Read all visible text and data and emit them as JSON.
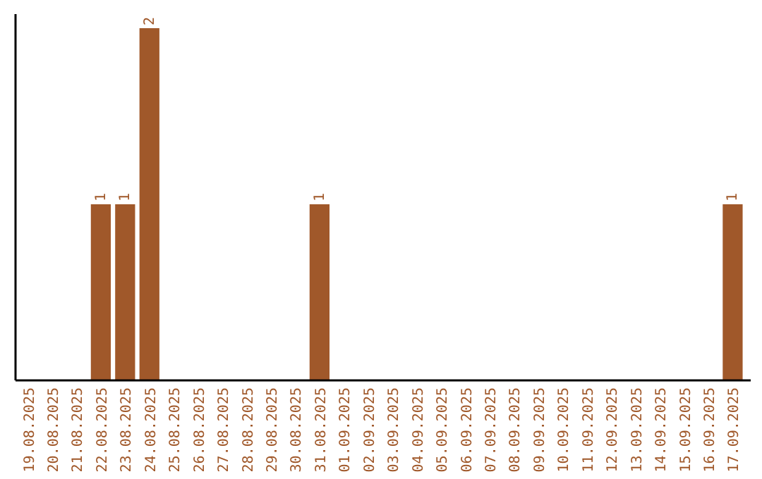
{
  "chart_data": {
    "type": "bar",
    "categories": [
      "19.08.2025",
      "20.08.2025",
      "21.08.2025",
      "22.08.2025",
      "23.08.2025",
      "24.08.2025",
      "25.08.2025",
      "26.08.2025",
      "27.08.2025",
      "28.08.2025",
      "29.08.2025",
      "30.08.2025",
      "31.08.2025",
      "01.09.2025",
      "02.09.2025",
      "03.09.2025",
      "04.09.2025",
      "05.09.2025",
      "06.09.2025",
      "07.09.2025",
      "08.09.2025",
      "09.09.2025",
      "10.09.2025",
      "11.09.2025",
      "12.09.2025",
      "13.09.2025",
      "14.09.2025",
      "15.09.2025",
      "16.09.2025",
      "17.09.2025"
    ],
    "values": [
      0,
      0,
      0,
      1,
      1,
      2,
      0,
      0,
      0,
      0,
      0,
      0,
      1,
      0,
      0,
      0,
      0,
      0,
      0,
      0,
      0,
      0,
      0,
      0,
      0,
      0,
      0,
      0,
      0,
      1
    ],
    "value_labels": [
      null,
      null,
      null,
      "1",
      "1",
      "2",
      null,
      null,
      null,
      null,
      null,
      null,
      "1",
      null,
      null,
      null,
      null,
      null,
      null,
      null,
      null,
      null,
      null,
      null,
      null,
      null,
      null,
      null,
      null,
      "1"
    ],
    "color": "#a0582a"
  }
}
